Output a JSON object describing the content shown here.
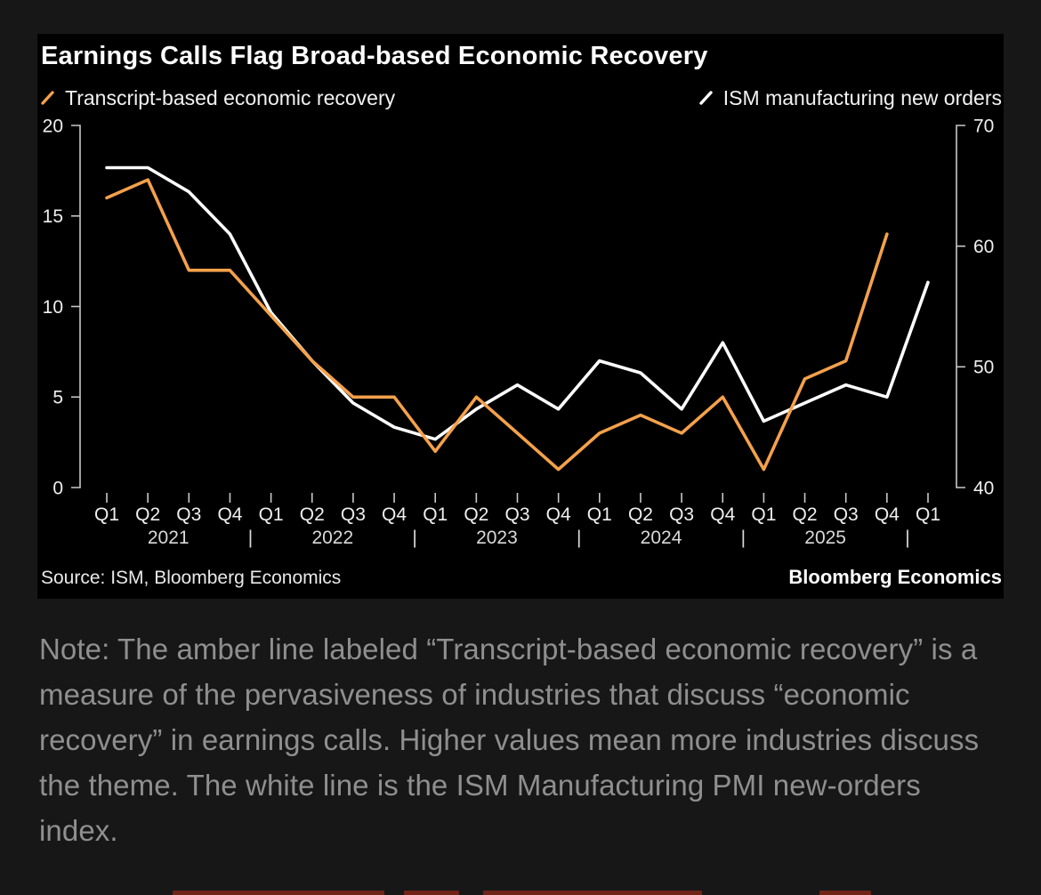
{
  "chart": {
    "title": "Earnings Calls Flag Broad-based Economic Recovery",
    "source": "Source: ISM, Bloomberg Economics",
    "brand": "Bloomberg Economics"
  },
  "chart_data": {
    "type": "line",
    "quarter_labels": [
      "Q1",
      "Q2",
      "Q3",
      "Q4",
      "Q1",
      "Q2",
      "Q3",
      "Q4",
      "Q1",
      "Q2",
      "Q3",
      "Q4",
      "Q1",
      "Q2",
      "Q3",
      "Q4",
      "Q1",
      "Q2",
      "Q3",
      "Q4",
      "Q1"
    ],
    "years": [
      "2021",
      "2022",
      "2023",
      "2024",
      "2025"
    ],
    "year_separator": "|",
    "left_axis": {
      "ticks": [
        0,
        5,
        10,
        15,
        20
      ],
      "range": [
        0,
        20
      ]
    },
    "right_axis": {
      "ticks": [
        40,
        50,
        60,
        70
      ],
      "range": [
        40,
        70
      ]
    },
    "series": [
      {
        "name": "Transcript-based economic recovery",
        "axis": "left",
        "color": "#F4A14B",
        "values": [
          16,
          17,
          12,
          12,
          9.5,
          7,
          5,
          5,
          2,
          5,
          3,
          1,
          3,
          4,
          3,
          5,
          1,
          6,
          7,
          14,
          null
        ]
      },
      {
        "name": "ISM manufacturing new orders",
        "axis": "right",
        "color": "#FFFFFF",
        "values": [
          66.5,
          66.5,
          64.5,
          61,
          54.5,
          50.5,
          47,
          45,
          44,
          46.5,
          48.5,
          46.5,
          50.5,
          49.5,
          46.5,
          52,
          45.5,
          47,
          48.5,
          47.5,
          57
        ]
      }
    ],
    "legend_position": "top",
    "grid": false
  },
  "note": {
    "text": "Note: The amber line labeled “Transcript-based economic recovery” is a measure of the pervasiveness of industries that discuss “economic recovery” in earnings calls. Higher values mean more industries discuss the theme. The white line is the ISM Manufacturing PMI new-orders index."
  }
}
